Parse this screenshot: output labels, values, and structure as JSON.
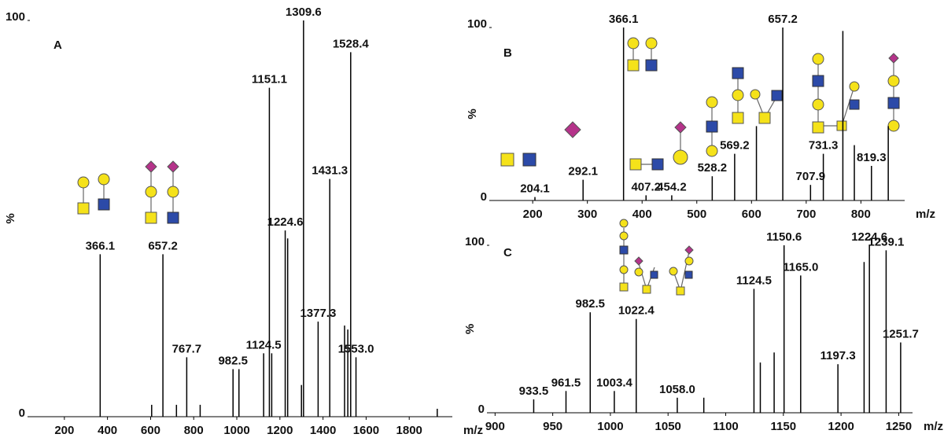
{
  "chart_data": [
    {
      "type": "bar",
      "title": "A",
      "x_label": "m/z",
      "y_label": "%",
      "color": "#000000",
      "xlim": [
        40,
        2000
      ],
      "ylim": [
        0,
        100
      ],
      "xticks": [
        200,
        400,
        600,
        800,
        1000,
        1200,
        1400,
        1600,
        1800
      ],
      "yticks": [
        0,
        100
      ],
      "x": [
        366.1,
        657.2,
        767.7,
        982.5,
        1010,
        1124.5,
        1151.1,
        1162,
        1224.6,
        1236,
        1309.6,
        1377.3,
        1431.3,
        1500,
        1515,
        1528.4,
        1553.0,
        605,
        720,
        830,
        1300,
        1930
      ],
      "values": [
        41,
        41,
        15,
        12,
        12,
        16,
        83,
        16,
        47,
        45,
        100,
        24,
        60,
        23,
        22,
        92,
        15,
        3,
        3,
        3,
        8,
        2
      ],
      "x_labels": [
        "366.1",
        "657.2",
        "767.7",
        "982.5",
        null,
        "1124.5",
        "1151.1",
        null,
        "1224.6",
        null,
        "1309.6",
        "1377.3",
        "1431.3",
        null,
        null,
        "1528.4",
        "1553.0",
        null,
        null,
        null,
        null,
        null
      ]
    },
    {
      "type": "bar",
      "title": "B",
      "x_label": "m/z",
      "y_label": "%",
      "color": "#000000",
      "xlim": [
        125,
        880
      ],
      "ylim": [
        0,
        100
      ],
      "xticks": [
        200,
        300,
        400,
        500,
        600,
        700,
        800
      ],
      "yticks": [
        0,
        100
      ],
      "x": [
        204.1,
        292.1,
        366.1,
        407.2,
        454.2,
        528.2,
        569.2,
        609,
        657.2,
        707.9,
        731.3,
        767,
        788,
        819.3,
        850
      ],
      "values": [
        2,
        12,
        100,
        3,
        3,
        14,
        27,
        43,
        100,
        9,
        27,
        98,
        32,
        20,
        43
      ],
      "x_labels": [
        "204.1",
        "292.1",
        "366.1",
        "407.2",
        "454.2",
        "528.2",
        "569.2",
        null,
        "657.2",
        "707.9",
        "731.3",
        null,
        null,
        "819.3",
        null
      ]
    },
    {
      "type": "bar",
      "title": "C",
      "x_label": "m/z",
      "y_label": "%",
      "color": "#000000",
      "xlim": [
        895,
        1262
      ],
      "ylim": [
        0,
        100
      ],
      "xticks": [
        900,
        950,
        1000,
        1050,
        1100,
        1150,
        1200,
        1250
      ],
      "yticks": [
        0,
        100
      ],
      "x": [
        933.5,
        961.5,
        982.5,
        1003.4,
        1022.4,
        1058.0,
        1081,
        1124.5,
        1130,
        1142,
        1150.6,
        1165.0,
        1197.3,
        1220,
        1224.6,
        1239.1,
        1251.7
      ],
      "values": [
        8,
        13,
        60,
        13,
        56,
        9,
        9,
        74,
        30,
        36,
        100,
        82,
        29,
        90,
        100,
        97,
        42
      ],
      "x_labels": [
        "933.5",
        "961.5",
        "982.5",
        "1003.4",
        "1022.4",
        "1058.0",
        null,
        "1124.5",
        null,
        null,
        "1150.6",
        "1165.0",
        "1197.3",
        null,
        "1224.6",
        "1239.1",
        "1251.7"
      ]
    }
  ]
}
